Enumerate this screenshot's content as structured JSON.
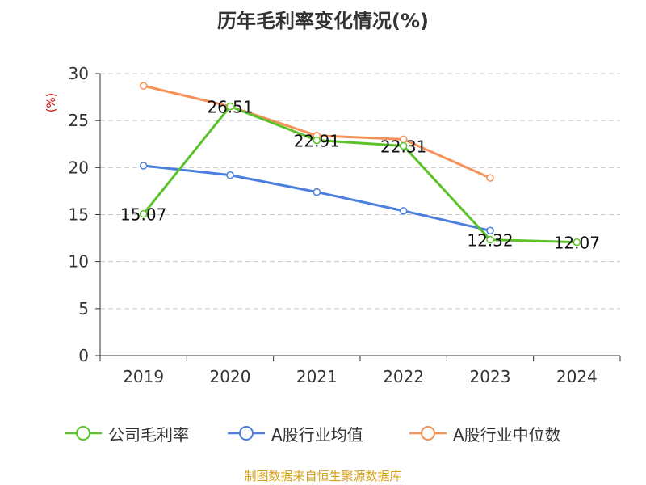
{
  "title": "历年毛利率变化情况(%)",
  "source_text": "制图数据来自恒生聚源数据库",
  "chart_data": {
    "type": "line",
    "title": "历年毛利率变化情况(%)",
    "ylabel": "(%)",
    "xlabel": "",
    "ylim": [
      0,
      30
    ],
    "yticks": [
      0,
      5,
      10,
      15,
      20,
      25,
      30
    ],
    "categories": [
      "2019",
      "2020",
      "2021",
      "2022",
      "2023",
      "2024"
    ],
    "grid": true,
    "legend_position": "bottom",
    "series": [
      {
        "name": "公司毛利率",
        "color": "#5cc22a",
        "values": [
          15.07,
          26.51,
          22.91,
          22.31,
          12.32,
          12.07
        ],
        "data_labels": [
          "15.07",
          "26.51",
          "22.91",
          "22.31",
          "12.32",
          "12.07"
        ]
      },
      {
        "name": "A股行业均值",
        "color": "#4a7fdd",
        "values": [
          20.2,
          19.2,
          17.4,
          15.4,
          13.3,
          null
        ]
      },
      {
        "name": "A股行业中位数",
        "color": "#f4925a",
        "values": [
          28.7,
          26.5,
          23.4,
          23.0,
          18.9,
          null
        ]
      }
    ]
  }
}
